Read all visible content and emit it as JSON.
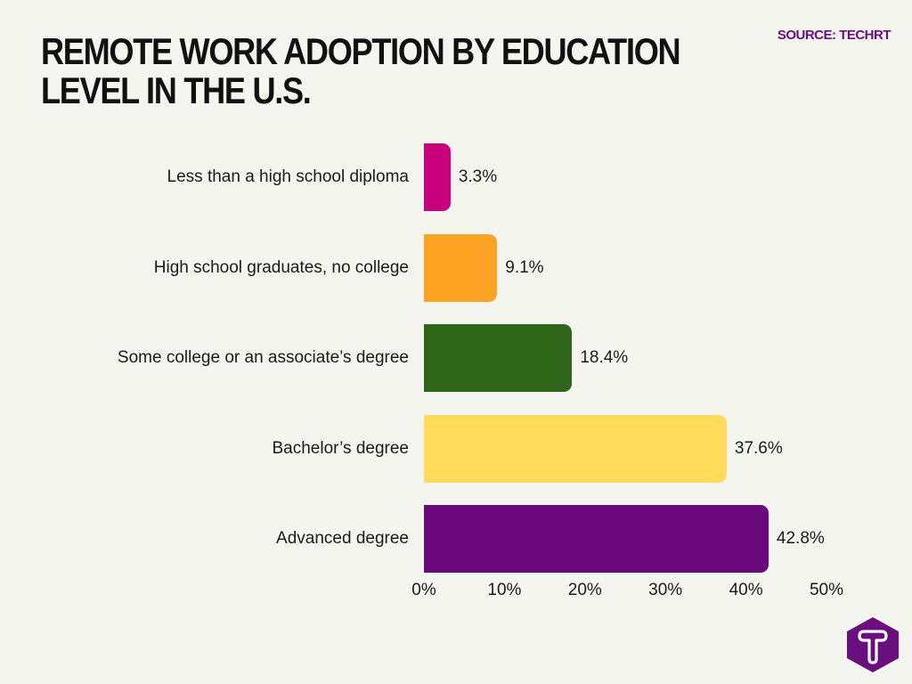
{
  "header": {
    "title": "Remote work adoption by education level in the U.S.",
    "source": "SOURCE: TECHRT"
  },
  "chart_data": {
    "type": "bar",
    "orientation": "horizontal",
    "title": "Remote work adoption by education level in the U.S.",
    "categories": [
      "Less than a high school diploma",
      "High school graduates, no college",
      "Some college or an associate’s degree",
      "Bachelor’s degree",
      "Advanced degree"
    ],
    "values": [
      3.3,
      9.1,
      18.4,
      37.6,
      42.8
    ],
    "value_labels": [
      "3.3%",
      "9.1%",
      "18.4%",
      "37.6%",
      "42.8%"
    ],
    "colors": [
      "#c8007e",
      "#fca324",
      "#2f6619",
      "#ffdc5c",
      "#6a087d"
    ],
    "xlabel": "",
    "ylabel": "",
    "xlim": [
      0,
      50
    ],
    "x_ticks": [
      "0%",
      "10%",
      "20%",
      "30%",
      "40%",
      "50%"
    ],
    "grid": false,
    "legend": "none",
    "source": "SOURCE: TECHRT"
  },
  "logo": {
    "icon": "techrt-hexagon-logo",
    "letter": "T",
    "color": "#6a0d7e"
  }
}
